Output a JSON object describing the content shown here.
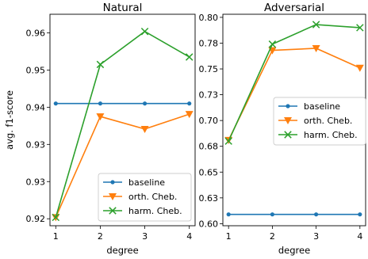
{
  "chart_data": [
    {
      "type": "line",
      "title": "Natural",
      "xlabel": "degree",
      "ylabel": "avg. f1-score",
      "x": [
        1,
        2,
        3,
        4
      ],
      "xticks": [
        "1",
        "2",
        "3",
        "4"
      ],
      "ylim": [
        0.9165,
        0.962
      ],
      "yticks": [
        {
          "v": 0.918,
          "label": "0.92"
        },
        {
          "v": 0.926,
          "label": "0.93"
        },
        {
          "v": 0.934,
          "label": "0.93"
        },
        {
          "v": 0.942,
          "label": "0.94"
        },
        {
          "v": 0.95,
          "label": "0.95"
        },
        {
          "v": 0.958,
          "label": "0.96"
        }
      ],
      "legend_position": "lower-right",
      "series": [
        {
          "name": "baseline",
          "values": [
            0.9428,
            0.9428,
            0.9428,
            0.9428
          ],
          "color": "#1f77b4",
          "marker": "dot"
        },
        {
          "name": "orth. Cheb.",
          "values": [
            0.9183,
            0.94,
            0.9373,
            0.9405
          ],
          "color": "#ff7f0e",
          "marker": "triangle"
        },
        {
          "name": "harm. Cheb.",
          "values": [
            0.9183,
            0.9512,
            0.9583,
            0.9528
          ],
          "color": "#2ca02c",
          "marker": "x"
        }
      ]
    },
    {
      "type": "line",
      "title": "Adversarial",
      "xlabel": "degree",
      "ylabel": "",
      "x": [
        1,
        2,
        3,
        4
      ],
      "xticks": [
        "1",
        "2",
        "3",
        "4"
      ],
      "ylim": [
        0.598,
        0.803
      ],
      "yticks": [
        {
          "v": 0.6,
          "label": "0.60"
        },
        {
          "v": 0.625,
          "label": "0.63"
        },
        {
          "v": 0.65,
          "label": "0.65"
        },
        {
          "v": 0.675,
          "label": "0.68"
        },
        {
          "v": 0.7,
          "label": "0.70"
        },
        {
          "v": 0.725,
          "label": "0.73"
        },
        {
          "v": 0.75,
          "label": "0.75"
        },
        {
          "v": 0.775,
          "label": "0.78"
        },
        {
          "v": 0.8,
          "label": "0.80"
        }
      ],
      "legend_position": "center-right",
      "series": [
        {
          "name": "baseline",
          "values": [
            0.609,
            0.609,
            0.609,
            0.609
          ],
          "color": "#1f77b4",
          "marker": "dot"
        },
        {
          "name": "orth. Cheb.",
          "values": [
            0.681,
            0.768,
            0.77,
            0.751
          ],
          "color": "#ff7f0e",
          "marker": "triangle"
        },
        {
          "name": "harm. Cheb.",
          "values": [
            0.68,
            0.774,
            0.793,
            0.79
          ],
          "color": "#2ca02c",
          "marker": "x"
        }
      ]
    }
  ]
}
